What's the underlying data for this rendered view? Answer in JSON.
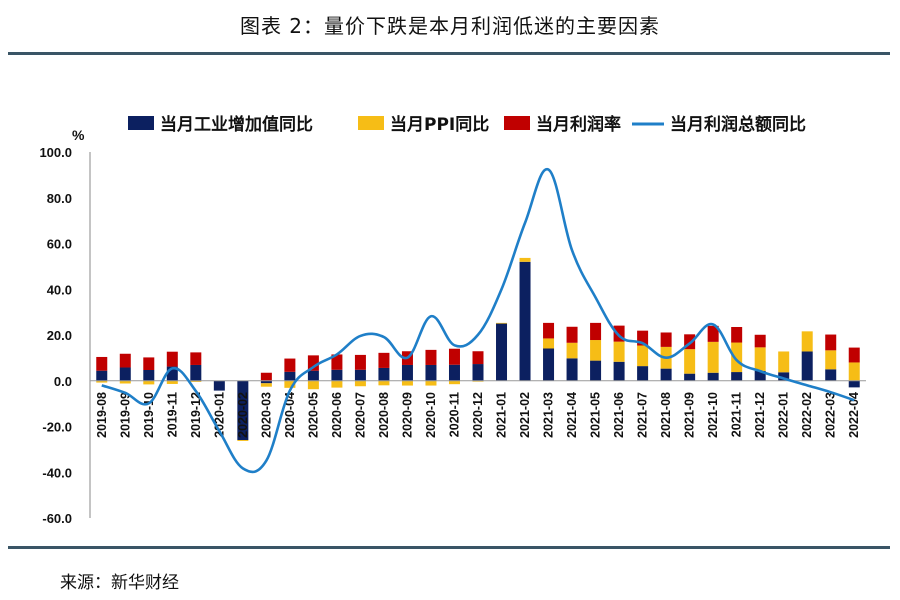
{
  "figure": {
    "title": "图表 2：量价下跌是本月利润低迷的主要因素",
    "source": "来源：新华财经"
  },
  "colors": {
    "industrial": "#0c2060",
    "ppi": "#f6bd16",
    "margin": "#c00000",
    "profit_line": "#1f7fc8",
    "rule": "#3a5566"
  },
  "chart_data": {
    "type": "bar",
    "stacked": true,
    "ylabel": "%",
    "ylim": [
      -60,
      100
    ],
    "yticks": [
      "100.0",
      "80.0",
      "60.0",
      "40.0",
      "20.0",
      "0.0",
      "-20.0",
      "-40.0",
      "-60.0"
    ],
    "ytick_values": [
      100,
      80,
      60,
      40,
      20,
      0,
      -20,
      -40,
      -60
    ],
    "legend_position": "top",
    "categories": [
      "2019-08",
      "2019-09",
      "2019-10",
      "2019-11",
      "2019-12",
      "2020-01",
      "2020-02",
      "2020-03",
      "2020-04",
      "2020-05",
      "2020-06",
      "2020-07",
      "2020-08",
      "2020-09",
      "2020-10",
      "2020-11",
      "2020-12",
      "2021-01",
      "2021-02",
      "2021-03",
      "2021-04",
      "2021-05",
      "2021-06",
      "2021-07",
      "2021-08",
      "2021-09",
      "2021-10",
      "2021-11",
      "2021-12",
      "2022-01",
      "2022-02",
      "2022-03",
      "2022-04"
    ],
    "series": [
      {
        "name": "当月工业增加值同比",
        "kind": "bar",
        "color": "#0c2060",
        "values": [
          4.4,
          5.8,
          4.7,
          6.2,
          6.9,
          -4.3,
          -25.9,
          -1.1,
          3.9,
          4.4,
          4.8,
          4.8,
          5.6,
          6.9,
          6.9,
          7.0,
          7.3,
          25.0,
          52.0,
          14.1,
          9.8,
          8.8,
          8.3,
          6.4,
          5.3,
          3.1,
          3.5,
          3.8,
          4.3,
          3.7,
          12.8,
          5.0,
          -2.9
        ]
      },
      {
        "name": "当月PPI同比",
        "kind": "bar",
        "color": "#f6bd16",
        "values": [
          -0.8,
          -1.2,
          -1.6,
          -1.4,
          -0.5,
          0.1,
          -0.4,
          -1.5,
          -3.1,
          -3.7,
          -3.0,
          -2.4,
          -2.0,
          -2.1,
          -2.1,
          -1.5,
          -0.4,
          0.3,
          1.7,
          4.4,
          6.8,
          9.0,
          8.8,
          9.0,
          9.5,
          10.7,
          13.5,
          12.9,
          10.3,
          9.1,
          8.8,
          8.3,
          8.0
        ]
      },
      {
        "name": "当月利润率",
        "kind": "bar",
        "color": "#c00000",
        "values": [
          6.0,
          6.0,
          5.5,
          6.5,
          5.5,
          0.0,
          0.0,
          3.5,
          5.8,
          6.7,
          6.7,
          6.5,
          6.6,
          6.0,
          6.6,
          7.0,
          5.6,
          0.0,
          0.0,
          6.8,
          7.0,
          7.5,
          7.0,
          6.5,
          6.3,
          6.5,
          7.0,
          6.8,
          5.5,
          0.0,
          0.0,
          6.9,
          6.5
        ]
      },
      {
        "name": "当月利润总额同比",
        "kind": "line",
        "color": "#1f7fc8",
        "values": [
          -2.0,
          -5.3,
          -9.9,
          5.4,
          -4.5,
          -22.0,
          -38.3,
          -34.9,
          -4.3,
          6.0,
          11.5,
          19.6,
          19.1,
          10.1,
          28.2,
          15.5,
          20.1,
          40.0,
          69.0,
          92.3,
          57.0,
          36.4,
          19.7,
          16.4,
          10.1,
          16.3,
          24.6,
          9.0,
          4.2,
          1.0,
          -2.0,
          -5.0,
          -8.5
        ]
      }
    ]
  }
}
